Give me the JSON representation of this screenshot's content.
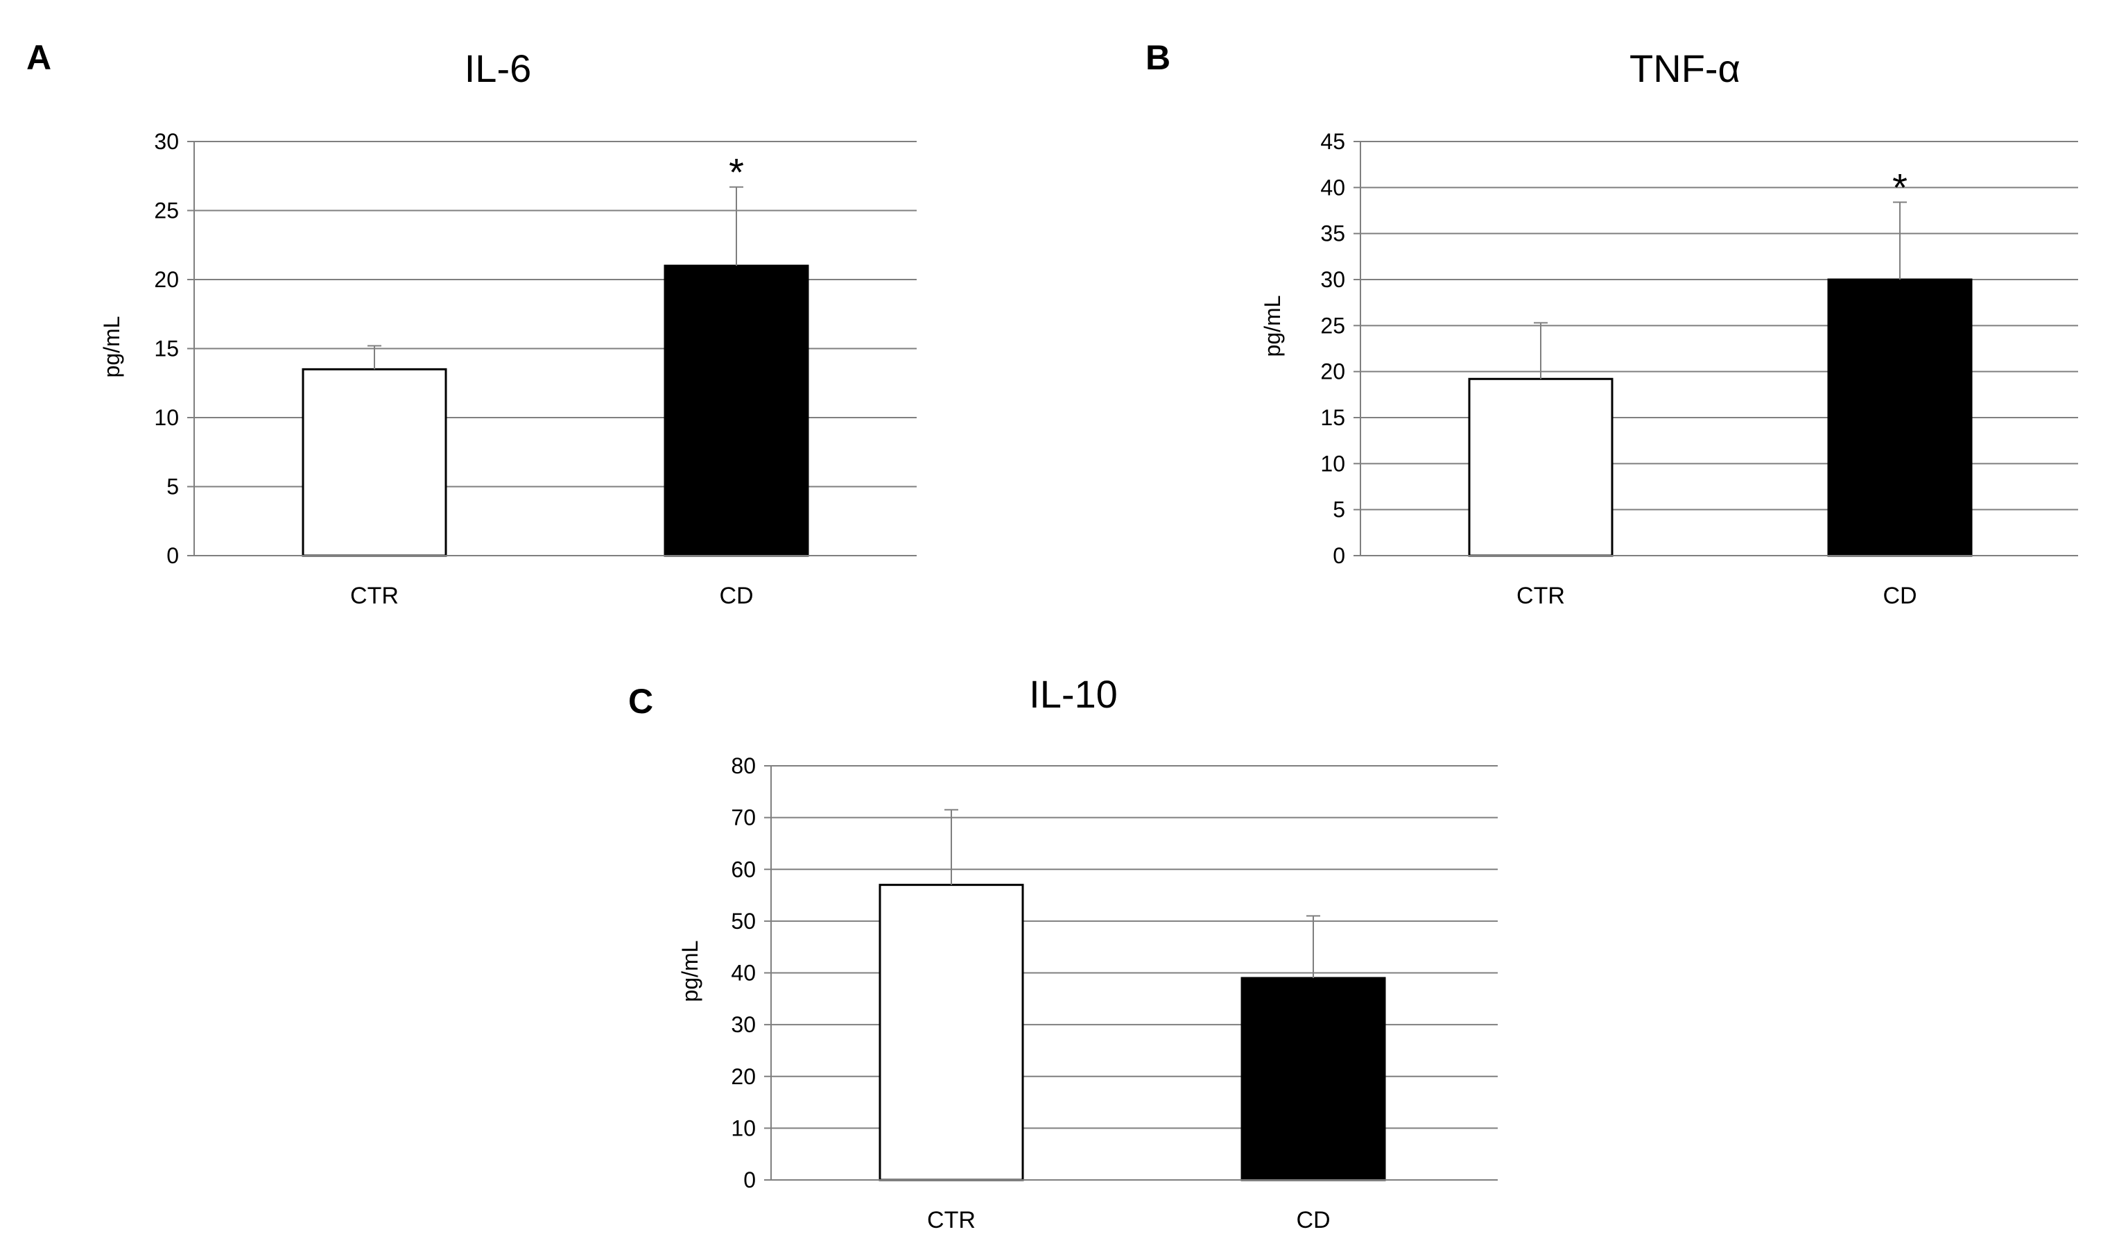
{
  "colors": {
    "ctr_bar": "#ffffff",
    "cd_bar": "#000000",
    "bar_stroke": "#000000",
    "grid": "#7f7f7f",
    "axis": "#7f7f7f",
    "error_bar": "#7f7f7f"
  },
  "chart_data": [
    {
      "panel": "A",
      "type": "bar",
      "title": "IL-6",
      "ylabel": "pg/mL",
      "xlabel": "",
      "categories": [
        "CTR",
        "CD"
      ],
      "values": [
        13.5,
        21.0
      ],
      "errors": [
        1.7,
        5.7
      ],
      "significance": [
        "",
        "*"
      ],
      "ylim": [
        0,
        30
      ],
      "yticks": [
        0,
        5,
        10,
        15,
        20,
        25,
        30
      ],
      "grid": true,
      "legend": "none"
    },
    {
      "panel": "B",
      "type": "bar",
      "title": "TNF-α",
      "ylabel": "pg/mL",
      "xlabel": "",
      "categories": [
        "CTR",
        "CD"
      ],
      "values": [
        19.2,
        30.0
      ],
      "errors": [
        6.1,
        8.4
      ],
      "significance": [
        "",
        "*"
      ],
      "ylim": [
        0,
        45
      ],
      "yticks": [
        0,
        5,
        10,
        15,
        20,
        25,
        30,
        35,
        40,
        45
      ],
      "grid": true,
      "legend": "none"
    },
    {
      "panel": "C",
      "type": "bar",
      "title": "IL-10",
      "ylabel": "pg/mL",
      "xlabel": "",
      "categories": [
        "CTR",
        "CD"
      ],
      "values": [
        57.0,
        39.0
      ],
      "errors": [
        14.5,
        12.0
      ],
      "significance": [
        "",
        ""
      ],
      "ylim": [
        0,
        80
      ],
      "yticks": [
        0,
        10,
        20,
        30,
        40,
        50,
        60,
        70,
        80
      ],
      "grid": true,
      "legend": "none"
    }
  ]
}
